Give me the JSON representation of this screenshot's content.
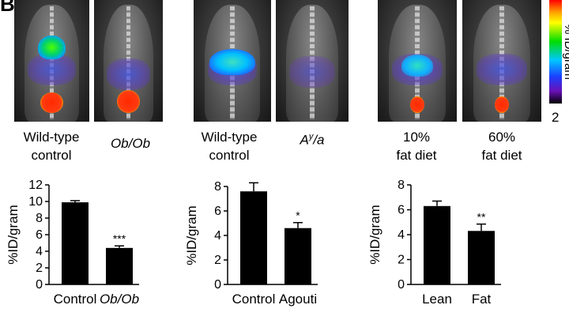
{
  "panel_label": "B",
  "colorbar": {
    "label": "% ID/gram",
    "min_label": "2"
  },
  "images": [
    {
      "caption_lines": [
        "Wild-type",
        "control"
      ],
      "italic": false,
      "uptake": "high"
    },
    {
      "caption_lines": [
        "Ob/Ob"
      ],
      "italic": true,
      "uptake": "low"
    },
    {
      "caption_lines": [
        "Wild-type",
        "control"
      ],
      "italic": false,
      "uptake": "high"
    },
    {
      "caption_lines": [
        "A",
        "y",
        "/a"
      ],
      "italic": true,
      "uptake": "low"
    },
    {
      "caption_lines": [
        "10%",
        "fat diet"
      ],
      "italic": false,
      "uptake": "mid"
    },
    {
      "caption_lines": [
        "60%",
        "fat diet"
      ],
      "italic": false,
      "uptake": "low"
    }
  ],
  "chart_data": [
    {
      "type": "bar",
      "ylabel": "%ID/gram",
      "ylim": [
        0,
        12
      ],
      "yticks": [
        0,
        2,
        4,
        6,
        8,
        10,
        12
      ],
      "categories": [
        "Control",
        "Ob/Ob"
      ],
      "category_italic": [
        false,
        true
      ],
      "values": [
        9.9,
        4.4
      ],
      "errors": [
        0.2,
        0.25
      ],
      "significance": [
        "",
        "***"
      ]
    },
    {
      "type": "bar",
      "ylabel": "%ID/gram",
      "ylim": [
        0,
        8
      ],
      "yticks": [
        0,
        2,
        4,
        6,
        8
      ],
      "categories": [
        "Control",
        "Agouti"
      ],
      "category_italic": [
        false,
        false
      ],
      "values": [
        7.6,
        4.6
      ],
      "errors": [
        0.7,
        0.45
      ],
      "significance": [
        "",
        "*"
      ]
    },
    {
      "type": "bar",
      "ylabel": "%ID/gram",
      "ylim": [
        0,
        8
      ],
      "yticks": [
        0,
        2,
        4,
        6,
        8
      ],
      "categories": [
        "Lean",
        "Fat"
      ],
      "category_italic": [
        false,
        false
      ],
      "values": [
        6.3,
        4.3
      ],
      "errors": [
        0.4,
        0.55
      ],
      "significance": [
        "",
        "**"
      ]
    }
  ]
}
